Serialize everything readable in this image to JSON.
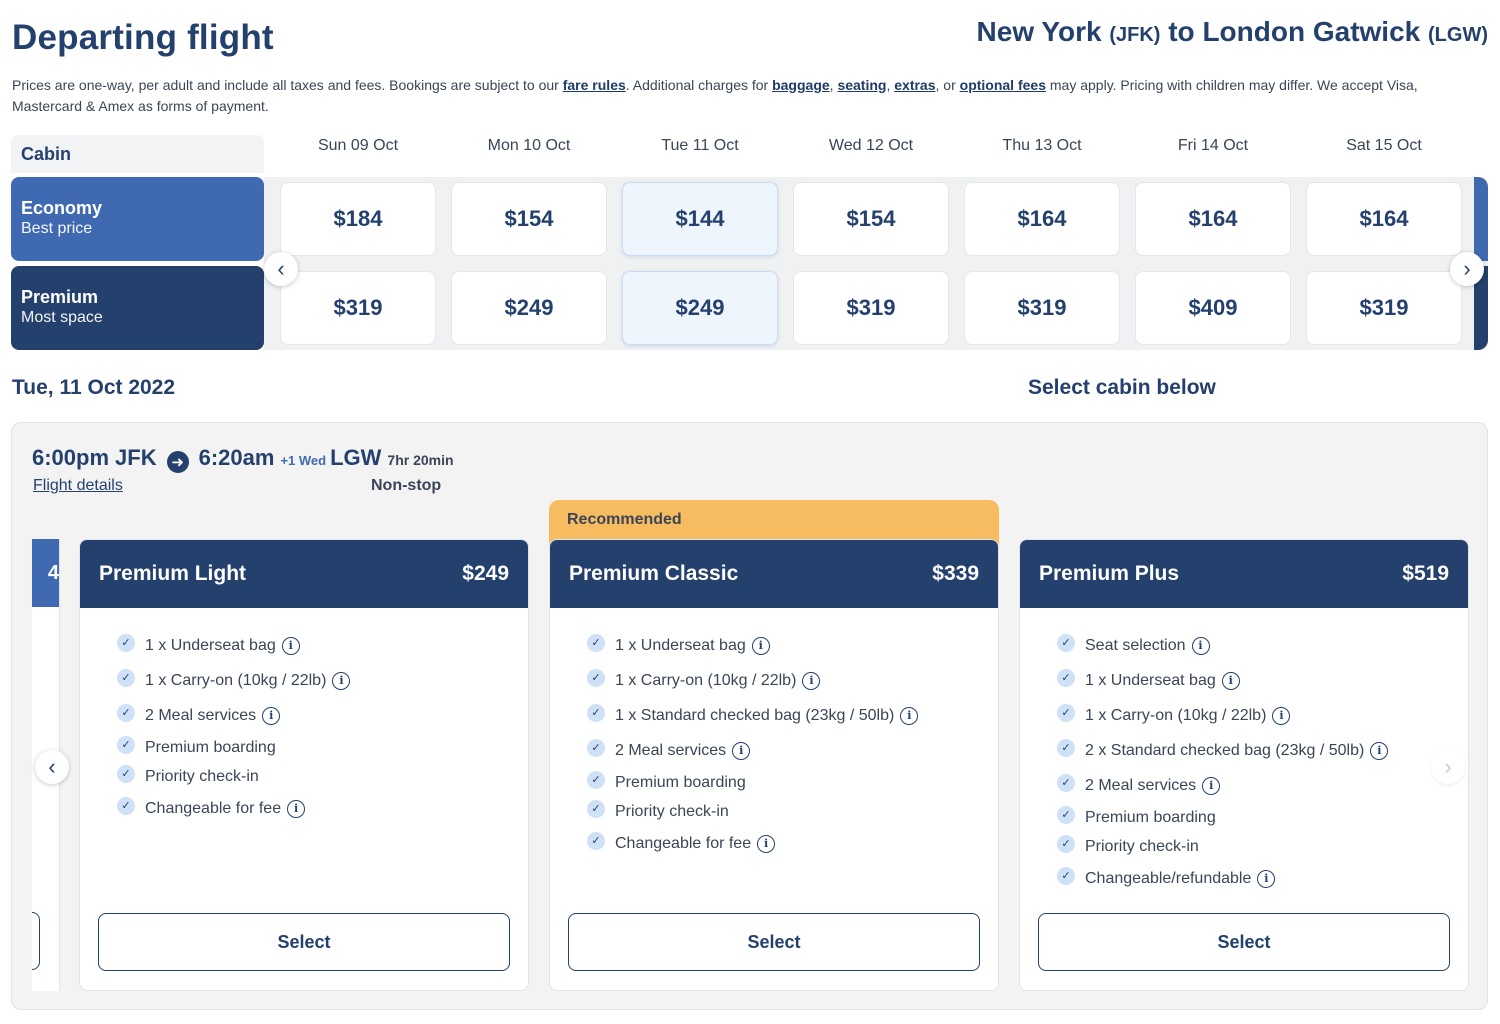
{
  "header": {
    "title": "Departing flight",
    "route": {
      "origin_city": "New York",
      "origin_code": "(JFK)",
      "connector": "to",
      "destination_city": "London Gatwick",
      "destination_code": "(LGW)"
    }
  },
  "disclaimer": {
    "t1": "Prices are one-way, per adult and include all taxes and fees. Bookings are subject to our ",
    "fare_rules": "fare rules",
    "t2": ". Additional charges for ",
    "baggage": "baggage",
    "t3": ", ",
    "seating": "seating",
    "t4": ", ",
    "extras": "extras",
    "t5": ", or ",
    "optional_fees": "optional fees",
    "t6": " may apply. Pricing with children may differ. We accept Visa, Mastercard & Amex as forms of payment."
  },
  "grid": {
    "cabin_header": "Cabin",
    "dates": [
      "Sun 09 Oct",
      "Mon 10 Oct",
      "Tue 11 Oct",
      "Wed 12 Oct",
      "Thu 13 Oct",
      "Fri 14 Oct",
      "Sat 15 Oct"
    ],
    "selected_index": 2,
    "rows": [
      {
        "name": "Economy",
        "sub": "Best price",
        "prices": [
          "$184",
          "$154",
          "$144",
          "$154",
          "$164",
          "$164",
          "$164"
        ]
      },
      {
        "name": "Premium",
        "sub": "Most space",
        "prices": [
          "$319",
          "$249",
          "$249",
          "$319",
          "$319",
          "$409",
          "$319"
        ]
      }
    ],
    "prev_icon": "‹",
    "next_icon": "›"
  },
  "selected_date": "Tue, 11 Oct 2022",
  "select_cabin_label": "Select cabin below",
  "flight": {
    "depart_time": "6:00pm",
    "depart_code": "JFK",
    "arrive_time": "6:20am",
    "day_offset": "+1 Wed",
    "arrive_code": "LGW",
    "duration": "7hr 20min",
    "details_link": "Flight details",
    "stops": "Non-stop",
    "arrow_icon": "➜"
  },
  "fares": {
    "ghost_price_fragment": "4",
    "recommended_label": "Recommended",
    "select_label": "Select",
    "carousel_prev": "‹",
    "carousel_next": "›",
    "cards": [
      {
        "name": "Premium Light",
        "price": "$249",
        "features": [
          {
            "text": "1 x Underseat bag",
            "info": true
          },
          {
            "text": "1 x Carry-on (10kg / 22lb)",
            "info": true
          },
          {
            "text": "2 Meal services",
            "info": true
          },
          {
            "text": "Premium boarding",
            "info": false
          },
          {
            "text": "Priority check-in",
            "info": false
          },
          {
            "text": "Changeable for fee",
            "info": true
          }
        ]
      },
      {
        "name": "Premium Classic",
        "price": "$339",
        "features": [
          {
            "text": "1 x Underseat bag",
            "info": true
          },
          {
            "text": "1 x Carry-on (10kg / 22lb)",
            "info": true
          },
          {
            "text": "1 x Standard checked bag (23kg / 50lb)",
            "info": true
          },
          {
            "text": "2 Meal services",
            "info": true
          },
          {
            "text": "Premium boarding",
            "info": false
          },
          {
            "text": "Priority check-in",
            "info": false
          },
          {
            "text": "Changeable for fee",
            "info": true
          }
        ]
      },
      {
        "name": "Premium Plus",
        "price": "$519",
        "features": [
          {
            "text": "Seat selection",
            "info": true
          },
          {
            "text": "1 x Underseat bag",
            "info": true
          },
          {
            "text": "1 x Carry-on (10kg / 22lb)",
            "info": true
          },
          {
            "text": "2 x Standard checked bag (23kg / 50lb)",
            "info": true
          },
          {
            "text": "2 Meal services",
            "info": true
          },
          {
            "text": "Premium boarding",
            "info": false
          },
          {
            "text": "Priority check-in",
            "info": false
          },
          {
            "text": "Changeable/refundable",
            "info": true
          }
        ]
      }
    ]
  }
}
